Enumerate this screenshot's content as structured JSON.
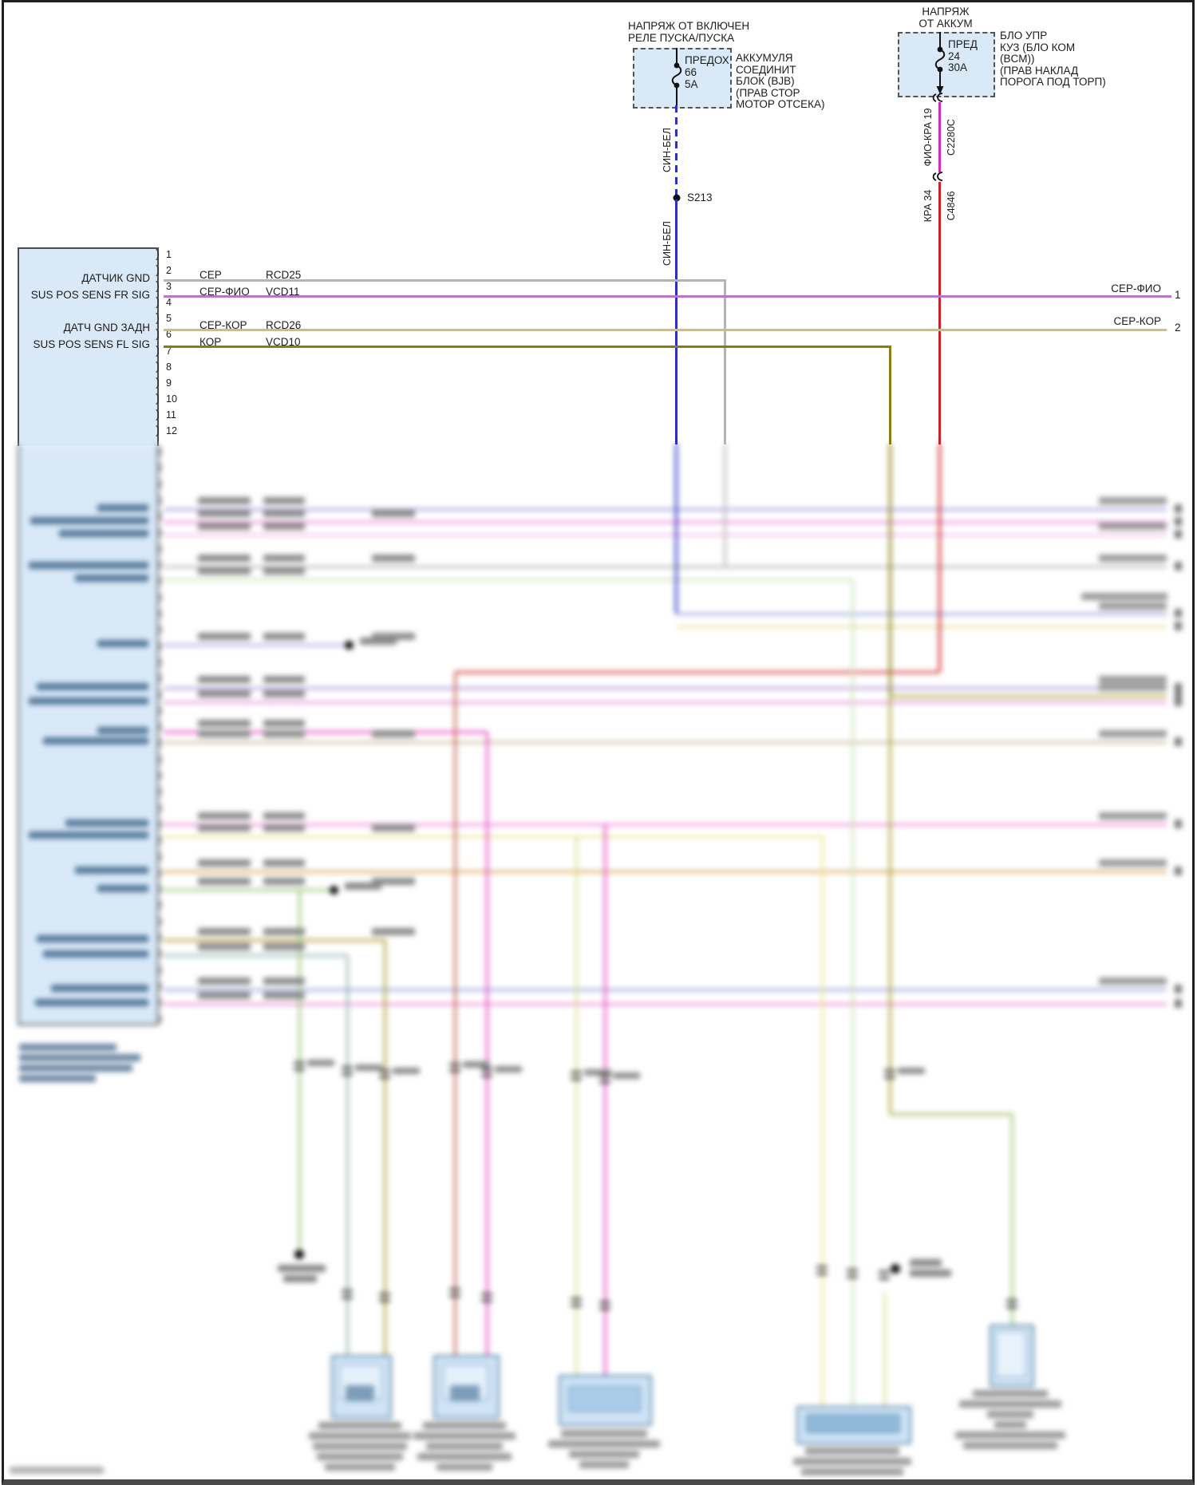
{
  "colors": {
    "box_fill": "#d9e9f8",
    "wire_gray": "#b4b4b4",
    "wire_violet": "#bd74cc",
    "wire_tan": "#c6bd97",
    "wire_olive": "#8a7c10",
    "wire_blue": "#2e2ec4",
    "wire_magenta": "#d929c0",
    "wire_red": "#cf2127"
  },
  "fuse_box_start": {
    "title_lines": [
      "НАПРЯЖ ОТ ВКЛЮЧЕН",
      "РЕЛЕ ПУСКА/ПУСКА"
    ],
    "fuse_label": "ПРЕДОХ",
    "fuse_number": "66",
    "fuse_rating": "5А",
    "location_lines": [
      "АККУМУЛЯ",
      "СОЕДИНИТ",
      "БЛОК (BJB)",
      "(ПРАВ СТОР",
      "МОТОР ОТСЕКА)"
    ]
  },
  "fuse_box_battery": {
    "title_lines": [
      "НАПРЯЖ",
      "ОТ АККУМ"
    ],
    "fuse_label": "ПРЕД",
    "fuse_number": "24",
    "fuse_rating": "30А",
    "location_lines": [
      "БЛО УПР",
      "КУЗ (БЛО КОМ",
      "(BCM))",
      "(ПРАВ НАКЛАД",
      "ПОРОГА ПОД ТОРП)"
    ]
  },
  "feed_wires": {
    "sin_bel_upper": "СИН-БЕЛ",
    "splice": "S213",
    "sin_bel_lower": "СИН-БЕЛ",
    "fio_kra_pin": "ФИО-КРА  19",
    "connector_top": "C2280C",
    "kra_pin": "КРА   34",
    "connector_bottom": "C4846"
  },
  "module": {
    "pins": [
      "1",
      "2",
      "3",
      "4",
      "5",
      "6",
      "7",
      "8",
      "9",
      "10",
      "11",
      "12"
    ],
    "pin_labels": {
      "p2": "ДАТЧИК GND",
      "p3": "SUS POS SENS FR SIG",
      "p5": "ДАТЧ GND ЗАДН",
      "p6": "SUS POS SENS FL SIG"
    },
    "wire_codes": [
      {
        "color": "СЕР",
        "code": "RCD25"
      },
      {
        "color": "СЕР-ФИО",
        "code": "VCD11"
      },
      {
        "color": "СЕР-КОР",
        "code": "RCD26"
      },
      {
        "color": "КОР",
        "code": "VCD10"
      }
    ]
  },
  "right_outputs": [
    {
      "label": "СЕР-ФИО",
      "num": "1"
    },
    {
      "label": "СЕР-КОР",
      "num": "2"
    }
  ]
}
